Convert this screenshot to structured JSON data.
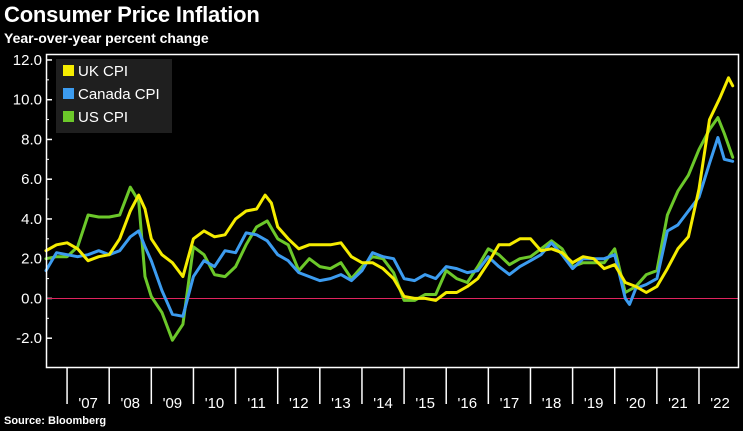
{
  "title": "Consumer Price Inflation",
  "subtitle": "Year-over-year percent change",
  "source": "Source: Bloomberg",
  "colors": {
    "background": "#000000",
    "plot_background": "#000000",
    "frame": "#ffffff",
    "legend_background": "#1f1f1f",
    "zero_line": "#e0245e",
    "uk": "#f5ec00",
    "canada": "#3c9cf0",
    "us": "#6cc82a"
  },
  "chart_data": {
    "type": "line",
    "title": "Consumer Price Inflation",
    "subtitle": "Year-over-year percent change",
    "xlabel": "",
    "ylabel": "",
    "xlim": [
      2006.5,
      2022.95
    ],
    "ylim": [
      -3.5,
      12.3
    ],
    "yticks": [
      -2.0,
      0.0,
      2.0,
      4.0,
      6.0,
      8.0,
      10.0,
      12.0
    ],
    "ytick_labels": [
      "-2.0",
      "0.0",
      "2.0",
      "4.0",
      "6.0",
      "8.0",
      "10.0",
      "12.0"
    ],
    "xticks": [
      2007,
      2008,
      2009,
      2010,
      2011,
      2012,
      2013,
      2014,
      2015,
      2016,
      2017,
      2018,
      2019,
      2020,
      2021,
      2022
    ],
    "xtick_labels": [
      "'07",
      "'08",
      "'09",
      "'10",
      "'11",
      "'12",
      "'13",
      "'14",
      "'15",
      "'16",
      "'17",
      "'18",
      "'19",
      "'20",
      "'21",
      "'22"
    ],
    "y_axis_side": "left",
    "grid": false,
    "legend_position": "top-left",
    "reference_line": {
      "y": 0.0
    },
    "series": [
      {
        "name": "UK CPI",
        "color_key": "uk",
        "points": [
          [
            2006.5,
            2.4
          ],
          [
            2006.75,
            2.7
          ],
          [
            2007.0,
            2.8
          ],
          [
            2007.25,
            2.5
          ],
          [
            2007.5,
            1.9
          ],
          [
            2007.75,
            2.1
          ],
          [
            2008.0,
            2.2
          ],
          [
            2008.25,
            3.0
          ],
          [
            2008.5,
            4.4
          ],
          [
            2008.7,
            5.2
          ],
          [
            2008.85,
            4.5
          ],
          [
            2009.0,
            3.0
          ],
          [
            2009.25,
            2.2
          ],
          [
            2009.5,
            1.8
          ],
          [
            2009.75,
            1.1
          ],
          [
            2010.0,
            3.0
          ],
          [
            2010.25,
            3.4
          ],
          [
            2010.5,
            3.1
          ],
          [
            2010.75,
            3.2
          ],
          [
            2011.0,
            4.0
          ],
          [
            2011.25,
            4.4
          ],
          [
            2011.5,
            4.5
          ],
          [
            2011.7,
            5.2
          ],
          [
            2011.85,
            4.8
          ],
          [
            2012.0,
            3.6
          ],
          [
            2012.25,
            3.0
          ],
          [
            2012.5,
            2.5
          ],
          [
            2012.75,
            2.7
          ],
          [
            2013.0,
            2.7
          ],
          [
            2013.25,
            2.7
          ],
          [
            2013.5,
            2.8
          ],
          [
            2013.75,
            2.1
          ],
          [
            2014.0,
            1.8
          ],
          [
            2014.25,
            1.8
          ],
          [
            2014.5,
            1.5
          ],
          [
            2014.75,
            1.0
          ],
          [
            2015.0,
            0.1
          ],
          [
            2015.25,
            0.0
          ],
          [
            2015.5,
            0.0
          ],
          [
            2015.75,
            -0.1
          ],
          [
            2016.0,
            0.3
          ],
          [
            2016.25,
            0.3
          ],
          [
            2016.5,
            0.6
          ],
          [
            2016.75,
            1.0
          ],
          [
            2017.0,
            1.8
          ],
          [
            2017.25,
            2.7
          ],
          [
            2017.5,
            2.7
          ],
          [
            2017.75,
            3.0
          ],
          [
            2018.0,
            3.0
          ],
          [
            2018.25,
            2.4
          ],
          [
            2018.5,
            2.5
          ],
          [
            2018.75,
            2.3
          ],
          [
            2019.0,
            1.8
          ],
          [
            2019.25,
            2.1
          ],
          [
            2019.5,
            2.0
          ],
          [
            2019.75,
            1.5
          ],
          [
            2020.0,
            1.7
          ],
          [
            2020.25,
            0.8
          ],
          [
            2020.5,
            0.6
          ],
          [
            2020.75,
            0.3
          ],
          [
            2021.0,
            0.6
          ],
          [
            2021.25,
            1.5
          ],
          [
            2021.5,
            2.5
          ],
          [
            2021.75,
            3.1
          ],
          [
            2022.0,
            5.5
          ],
          [
            2022.25,
            9.0
          ],
          [
            2022.5,
            10.1
          ],
          [
            2022.7,
            11.1
          ],
          [
            2022.8,
            10.7
          ]
        ]
      },
      {
        "name": "Canada CPI",
        "color_key": "canada",
        "points": [
          [
            2006.5,
            1.4
          ],
          [
            2006.75,
            2.3
          ],
          [
            2007.0,
            2.2
          ],
          [
            2007.25,
            2.1
          ],
          [
            2007.5,
            2.2
          ],
          [
            2007.75,
            2.4
          ],
          [
            2008.0,
            2.2
          ],
          [
            2008.25,
            2.4
          ],
          [
            2008.5,
            3.1
          ],
          [
            2008.7,
            3.4
          ],
          [
            2008.85,
            2.6
          ],
          [
            2009.0,
            1.9
          ],
          [
            2009.25,
            0.4
          ],
          [
            2009.5,
            -0.8
          ],
          [
            2009.75,
            -0.9
          ],
          [
            2010.0,
            1.1
          ],
          [
            2010.25,
            1.9
          ],
          [
            2010.5,
            1.6
          ],
          [
            2010.75,
            2.4
          ],
          [
            2011.0,
            2.3
          ],
          [
            2011.25,
            3.3
          ],
          [
            2011.5,
            3.2
          ],
          [
            2011.75,
            2.9
          ],
          [
            2012.0,
            2.2
          ],
          [
            2012.25,
            1.9
          ],
          [
            2012.5,
            1.3
          ],
          [
            2012.75,
            1.1
          ],
          [
            2013.0,
            0.9
          ],
          [
            2013.25,
            1.0
          ],
          [
            2013.5,
            1.2
          ],
          [
            2013.75,
            0.9
          ],
          [
            2014.0,
            1.4
          ],
          [
            2014.25,
            2.3
          ],
          [
            2014.5,
            2.1
          ],
          [
            2014.75,
            2.0
          ],
          [
            2015.0,
            1.0
          ],
          [
            2015.25,
            0.9
          ],
          [
            2015.5,
            1.2
          ],
          [
            2015.75,
            1.0
          ],
          [
            2016.0,
            1.6
          ],
          [
            2016.25,
            1.5
          ],
          [
            2016.5,
            1.3
          ],
          [
            2016.75,
            1.4
          ],
          [
            2017.0,
            2.1
          ],
          [
            2017.25,
            1.6
          ],
          [
            2017.5,
            1.2
          ],
          [
            2017.75,
            1.6
          ],
          [
            2018.0,
            1.9
          ],
          [
            2018.25,
            2.2
          ],
          [
            2018.5,
            2.8
          ],
          [
            2018.75,
            2.2
          ],
          [
            2019.0,
            1.5
          ],
          [
            2019.25,
            2.0
          ],
          [
            2019.5,
            2.0
          ],
          [
            2019.75,
            2.0
          ],
          [
            2020.0,
            2.2
          ],
          [
            2020.25,
            0.0
          ],
          [
            2020.35,
            -0.3
          ],
          [
            2020.5,
            0.5
          ],
          [
            2020.75,
            0.7
          ],
          [
            2021.0,
            1.0
          ],
          [
            2021.25,
            3.4
          ],
          [
            2021.5,
            3.7
          ],
          [
            2021.75,
            4.4
          ],
          [
            2022.0,
            5.1
          ],
          [
            2022.25,
            6.8
          ],
          [
            2022.45,
            8.1
          ],
          [
            2022.6,
            7.0
          ],
          [
            2022.8,
            6.9
          ]
        ]
      },
      {
        "name": "US CPI",
        "color_key": "us",
        "points": [
          [
            2006.5,
            2.0
          ],
          [
            2006.75,
            2.1
          ],
          [
            2007.0,
            2.1
          ],
          [
            2007.25,
            2.6
          ],
          [
            2007.5,
            4.2
          ],
          [
            2007.75,
            4.1
          ],
          [
            2008.0,
            4.1
          ],
          [
            2008.25,
            4.2
          ],
          [
            2008.5,
            5.6
          ],
          [
            2008.7,
            4.9
          ],
          [
            2008.85,
            1.1
          ],
          [
            2009.0,
            0.1
          ],
          [
            2009.25,
            -0.7
          ],
          [
            2009.5,
            -2.1
          ],
          [
            2009.75,
            -1.3
          ],
          [
            2010.0,
            2.6
          ],
          [
            2010.25,
            2.2
          ],
          [
            2010.5,
            1.2
          ],
          [
            2010.75,
            1.1
          ],
          [
            2011.0,
            1.6
          ],
          [
            2011.25,
            2.7
          ],
          [
            2011.5,
            3.6
          ],
          [
            2011.75,
            3.9
          ],
          [
            2012.0,
            3.0
          ],
          [
            2012.25,
            2.7
          ],
          [
            2012.5,
            1.4
          ],
          [
            2012.75,
            2.0
          ],
          [
            2013.0,
            1.6
          ],
          [
            2013.25,
            1.5
          ],
          [
            2013.5,
            1.8
          ],
          [
            2013.75,
            1.0
          ],
          [
            2014.0,
            1.6
          ],
          [
            2014.25,
            2.1
          ],
          [
            2014.5,
            2.0
          ],
          [
            2014.75,
            1.3
          ],
          [
            2015.0,
            -0.1
          ],
          [
            2015.25,
            -0.1
          ],
          [
            2015.5,
            0.2
          ],
          [
            2015.75,
            0.2
          ],
          [
            2016.0,
            1.4
          ],
          [
            2016.25,
            1.0
          ],
          [
            2016.5,
            0.8
          ],
          [
            2016.75,
            1.6
          ],
          [
            2017.0,
            2.5
          ],
          [
            2017.25,
            2.2
          ],
          [
            2017.5,
            1.7
          ],
          [
            2017.75,
            2.0
          ],
          [
            2018.0,
            2.1
          ],
          [
            2018.25,
            2.5
          ],
          [
            2018.5,
            2.9
          ],
          [
            2018.75,
            2.5
          ],
          [
            2019.0,
            1.6
          ],
          [
            2019.25,
            1.8
          ],
          [
            2019.5,
            1.8
          ],
          [
            2019.75,
            1.8
          ],
          [
            2020.0,
            2.5
          ],
          [
            2020.25,
            0.3
          ],
          [
            2020.5,
            0.6
          ],
          [
            2020.75,
            1.2
          ],
          [
            2021.0,
            1.4
          ],
          [
            2021.25,
            4.2
          ],
          [
            2021.5,
            5.4
          ],
          [
            2021.75,
            6.2
          ],
          [
            2022.0,
            7.5
          ],
          [
            2022.25,
            8.5
          ],
          [
            2022.45,
            9.1
          ],
          [
            2022.6,
            8.3
          ],
          [
            2022.8,
            7.1
          ]
        ]
      }
    ]
  }
}
